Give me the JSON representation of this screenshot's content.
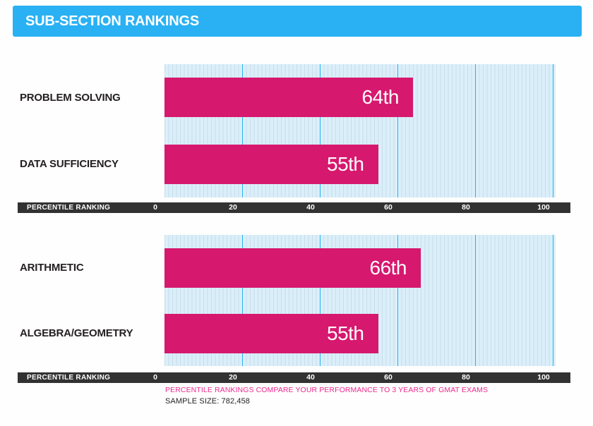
{
  "header": {
    "title": "SUB-SECTION RANKINGS"
  },
  "chart_data": [
    {
      "type": "bar",
      "orientation": "horizontal",
      "categories": [
        "PROBLEM SOLVING",
        "DATA SUFFICIENCY"
      ],
      "values": [
        64,
        55
      ],
      "value_labels": [
        "64th",
        "55th"
      ],
      "axis_title": "PERCENTILE RANKING",
      "tick_values": [
        0,
        20,
        40,
        60,
        80,
        100
      ],
      "tick_labels": [
        "0",
        "20",
        "40",
        "60",
        "80",
        "100"
      ],
      "gridline_values": [
        20,
        40,
        60,
        80,
        100
      ],
      "xlim": [
        0,
        100
      ],
      "grid": true,
      "bar_color": "#d6186e"
    },
    {
      "type": "bar",
      "orientation": "horizontal",
      "categories": [
        "ARITHMETIC",
        "ALGEBRA/GEOMETRY"
      ],
      "values": [
        66,
        55
      ],
      "value_labels": [
        "66th",
        "55th"
      ],
      "axis_title": "PERCENTILE RANKING",
      "tick_values": [
        0,
        20,
        40,
        60,
        80,
        100
      ],
      "tick_labels": [
        "0",
        "20",
        "40",
        "60",
        "80",
        "100"
      ],
      "gridline_values": [
        20,
        40,
        60,
        80,
        100
      ],
      "xlim": [
        0,
        100
      ],
      "grid": true,
      "bar_color": "#d6186e"
    }
  ],
  "footer": {
    "note": "PERCENTILE RANKINGS COMPARE YOUR PERFORMANCE TO 3 YEARS OF GMAT EXAMS",
    "sample_size_label": "SAMPLE SIZE: 782,458"
  },
  "colors": {
    "header_bg": "#29b1f3",
    "bar": "#d6186e",
    "axis_bar_bg": "#323232",
    "plot_bg": "#daeffa",
    "plot_stripe": "#c8dde8",
    "gridline": "#27b2ef",
    "label_text": "#231f20",
    "footer_note_text": "#ee2a90",
    "bar_value_text": "#ffffff"
  }
}
